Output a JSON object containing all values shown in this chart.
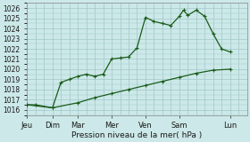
{
  "background_color": "#cce8e8",
  "grid_color": "#a0c8c8",
  "line_color": "#1a5c1a",
  "marker_color": "#1a5c1a",
  "ylabel_ticks": [
    1016,
    1017,
    1018,
    1019,
    1020,
    1021,
    1022,
    1023,
    1024,
    1025,
    1026
  ],
  "ylim": [
    1015.5,
    1026.5
  ],
  "xtick_labels": [
    "Jeu",
    "Dim",
    "Mar",
    "Mer",
    "Ven",
    "Sam",
    "Lun"
  ],
  "xtick_positions": [
    0,
    3,
    6,
    10,
    14,
    18,
    24
  ],
  "xlim": [
    0,
    26
  ],
  "xlabel": "Pression niveau de la mer( hPa )",
  "line1_x": [
    0,
    1,
    3,
    4,
    5,
    6,
    7,
    8,
    9,
    10,
    11,
    12,
    13,
    14,
    15,
    16,
    17,
    18,
    18.5,
    19,
    20,
    21,
    22,
    23,
    24
  ],
  "line1_y": [
    1016.5,
    1016.5,
    1016.2,
    1018.7,
    1019.0,
    1019.3,
    1019.5,
    1019.3,
    1019.5,
    1021.0,
    1021.1,
    1021.2,
    1022.1,
    1025.1,
    1024.7,
    1024.5,
    1024.3,
    1025.2,
    1025.8,
    1025.3,
    1025.8,
    1025.2,
    1023.5,
    1022.0,
    1021.7
  ],
  "line2_x": [
    0,
    3,
    6,
    8,
    10,
    12,
    14,
    16,
    18,
    20,
    22,
    24
  ],
  "line2_y": [
    1016.5,
    1016.2,
    1016.7,
    1017.2,
    1017.6,
    1018.0,
    1018.4,
    1018.8,
    1019.2,
    1019.6,
    1019.9,
    1020.0
  ]
}
